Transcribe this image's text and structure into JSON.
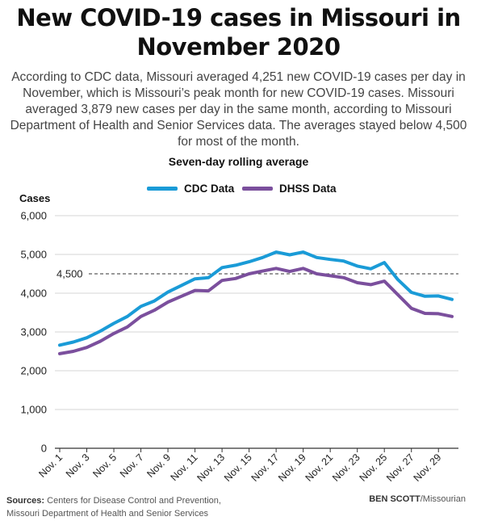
{
  "header": {
    "title_line1": "New COVID-19 cases in Missouri in",
    "title_line2": "November 2020",
    "description": "According to CDC data, Missouri averaged 4,251 new COVID-19 cases per day in November, which is Missouri’s peak month for new COVID-19 cases. Missouri averaged 3,879 new cases per day in the same month, according to Missouri Department of Health and Senior Services data. The averages stayed below 4,500 for most of the month."
  },
  "chart_data": {
    "type": "line",
    "title": "Seven-day rolling average",
    "ylabel": "Cases",
    "xlabel": "",
    "ylim": [
      0,
      6000
    ],
    "yticks": [
      0,
      1000,
      2000,
      3000,
      4000,
      5000,
      6000
    ],
    "ytick_labels": [
      "0",
      "1,000",
      "2,000",
      "3,000",
      "4,000",
      "5,000",
      "6,000"
    ],
    "grid": true,
    "legend_placement": "top",
    "x": [
      1,
      2,
      3,
      4,
      5,
      6,
      7,
      8,
      9,
      10,
      11,
      12,
      13,
      14,
      15,
      16,
      17,
      18,
      19,
      20,
      21,
      22,
      23,
      24,
      25,
      26,
      27,
      28,
      29,
      30
    ],
    "x_tick_values": [
      1,
      3,
      5,
      7,
      9,
      11,
      13,
      15,
      17,
      19,
      21,
      23,
      25,
      27,
      29
    ],
    "x_tick_labels": [
      "Nov. 1",
      "Nov. 3",
      "Nov. 5",
      "Nov. 7",
      "Nov. 9",
      "Nov. 11",
      "Nov. 13",
      "Nov. 15",
      "Nov. 17",
      "Nov. 19",
      "Nov. 21",
      "Nov. 23",
      "Nov. 25",
      "Nov. 27",
      "Nov. 29"
    ],
    "series": [
      {
        "name": "CDC Data",
        "color": "#1a9bd7",
        "values": [
          2660,
          2740,
          2850,
          3020,
          3220,
          3400,
          3660,
          3800,
          4030,
          4200,
          4370,
          4400,
          4660,
          4720,
          4810,
          4920,
          5060,
          4990,
          5060,
          4920,
          4870,
          4830,
          4700,
          4630,
          4790,
          4350,
          4020,
          3920,
          3930,
          3840
        ]
      },
      {
        "name": "DHSS Data",
        "color": "#7b4f9d",
        "values": [
          2440,
          2500,
          2600,
          2760,
          2960,
          3130,
          3400,
          3560,
          3770,
          3920,
          4070,
          4060,
          4330,
          4380,
          4500,
          4570,
          4640,
          4560,
          4640,
          4500,
          4450,
          4400,
          4270,
          4220,
          4310,
          3960,
          3610,
          3480,
          3470,
          3400
        ]
      }
    ],
    "reference_line": {
      "value": 4500,
      "label": "4,500",
      "style": "dashed",
      "color": "#333333"
    }
  },
  "footer": {
    "sources_label": "Sources:",
    "sources_line1": "Centers for Disease Control and Prevention,",
    "sources_line2": "Missouri Department of Health and Senior Services",
    "credit_name": "BEN SCOTT",
    "credit_org": "/Missourian"
  }
}
